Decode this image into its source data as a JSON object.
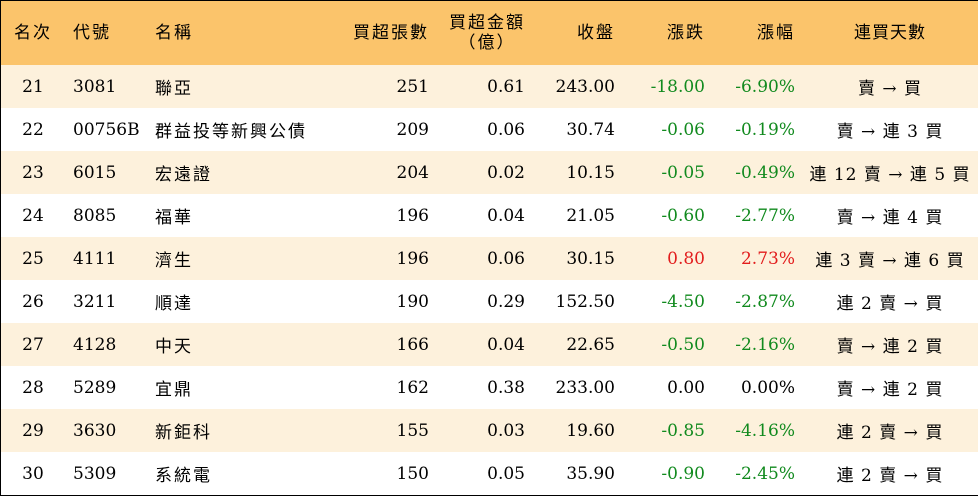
{
  "headers": {
    "rank": "名次",
    "code": "代號",
    "name": "名稱",
    "net_buy_lots": "買超張數",
    "net_buy_amount_line1": "買超金額",
    "net_buy_amount_line2": "（億）",
    "close": "收盤",
    "change": "漲跌",
    "change_pct": "漲幅",
    "buy_days": "連買天數"
  },
  "colors": {
    "header_bg": "#fbc46b",
    "stripe_bg": "#fdf1dc",
    "negative": "#118a1e",
    "positive": "#e21d1d"
  },
  "rows": [
    {
      "rank": "21",
      "code": "3081",
      "name": "聯亞",
      "lots": "251",
      "amount": "0.61",
      "close": "243.00",
      "change": "-18.00",
      "pct": "-6.90%",
      "trend": "neg",
      "days": "賣 → 買"
    },
    {
      "rank": "22",
      "code": "00756B",
      "name": "群益投等新興公債",
      "lots": "209",
      "amount": "0.06",
      "close": "30.74",
      "change": "-0.06",
      "pct": "-0.19%",
      "trend": "neg",
      "days": "賣 → 連 3 買"
    },
    {
      "rank": "23",
      "code": "6015",
      "name": "宏遠證",
      "lots": "204",
      "amount": "0.02",
      "close": "10.15",
      "change": "-0.05",
      "pct": "-0.49%",
      "trend": "neg",
      "days": "連 12 賣 → 連 5 買"
    },
    {
      "rank": "24",
      "code": "8085",
      "name": "福華",
      "lots": "196",
      "amount": "0.04",
      "close": "21.05",
      "change": "-0.60",
      "pct": "-2.77%",
      "trend": "neg",
      "days": "賣 → 連 4 買"
    },
    {
      "rank": "25",
      "code": "4111",
      "name": "濟生",
      "lots": "196",
      "amount": "0.06",
      "close": "30.15",
      "change": "0.80",
      "pct": "2.73%",
      "trend": "pos",
      "days": "連 3 賣 → 連 6 買"
    },
    {
      "rank": "26",
      "code": "3211",
      "name": "順達",
      "lots": "190",
      "amount": "0.29",
      "close": "152.50",
      "change": "-4.50",
      "pct": "-2.87%",
      "trend": "neg",
      "days": "連 2 賣 → 買"
    },
    {
      "rank": "27",
      "code": "4128",
      "name": "中天",
      "lots": "166",
      "amount": "0.04",
      "close": "22.65",
      "change": "-0.50",
      "pct": "-2.16%",
      "trend": "neg",
      "days": "賣 → 連 2 買"
    },
    {
      "rank": "28",
      "code": "5289",
      "name": "宜鼎",
      "lots": "162",
      "amount": "0.38",
      "close": "233.00",
      "change": "0.00",
      "pct": "0.00%",
      "trend": "flat",
      "days": "賣 → 連 2 買"
    },
    {
      "rank": "29",
      "code": "3630",
      "name": "新鉅科",
      "lots": "155",
      "amount": "0.03",
      "close": "19.60",
      "change": "-0.85",
      "pct": "-4.16%",
      "trend": "neg",
      "days": "連 2 賣 → 買"
    },
    {
      "rank": "30",
      "code": "5309",
      "name": "系統電",
      "lots": "150",
      "amount": "0.05",
      "close": "35.90",
      "change": "-0.90",
      "pct": "-2.45%",
      "trend": "neg",
      "days": "連 2 賣 → 買"
    }
  ]
}
